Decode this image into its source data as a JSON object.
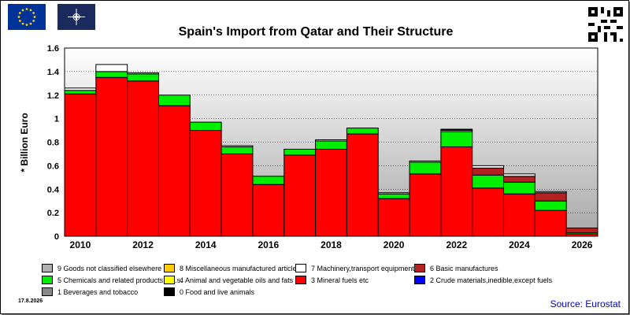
{
  "title": "Spain's Import from Qatar and Their Structure",
  "ylabel": "* Billion Euro",
  "date": "17.8.2026",
  "source": "Source: Eurostat",
  "colors": {
    "grid": "#000000",
    "plot_top": "#ffffff",
    "plot_bottom": "#a8a8a8"
  },
  "chart_data": {
    "type": "bar",
    "stacked": true,
    "x": [
      2010,
      2011,
      2012,
      2013,
      2014,
      2015,
      2016,
      2017,
      2018,
      2019,
      2020,
      2021,
      2022,
      2023,
      2024,
      2025,
      2026
    ],
    "x_tick_labels": [
      "2010",
      "2012",
      "2014",
      "2016",
      "2018",
      "2020",
      "2022",
      "2024",
      "2026"
    ],
    "ylim": [
      0,
      1.6
    ],
    "y_ticks": [
      "0",
      "0.2",
      "0.4",
      "0.6",
      "0.8",
      "1",
      "1.2",
      "1.4",
      "1.6"
    ],
    "grid": true,
    "series": [
      {
        "name": "3 Mineral fuels etc",
        "color": "#ff0000",
        "values": [
          1.21,
          1.35,
          1.32,
          1.11,
          0.9,
          0.7,
          0.44,
          0.69,
          0.74,
          0.87,
          0.32,
          0.53,
          0.76,
          0.41,
          0.36,
          0.22,
          0.02
        ]
      },
      {
        "name": "5 Chemicals and related products,n.e.s.",
        "color": "#00ee00",
        "values": [
          0.03,
          0.05,
          0.06,
          0.09,
          0.07,
          0.06,
          0.07,
          0.05,
          0.07,
          0.05,
          0.04,
          0.1,
          0.13,
          0.11,
          0.1,
          0.08,
          0.01
        ]
      },
      {
        "name": "6 Basic manufactures",
        "color": "#b22222",
        "values": [
          0.0,
          0.0,
          0.0,
          0.0,
          0.0,
          0.0,
          0.0,
          0.0,
          0.0,
          0.0,
          0.0,
          0.0,
          0.0,
          0.06,
          0.05,
          0.07,
          0.04
        ]
      },
      {
        "name": "7 Machinery,transport equipment",
        "color": "#ffffff",
        "values": [
          0.02,
          0.06,
          0.01,
          0.0,
          0.0,
          0.01,
          0.0,
          0.0,
          0.01,
          0.0,
          0.01,
          0.01,
          0.01,
          0.02,
          0.02,
          0.01,
          0.0
        ]
      },
      {
        "name": "8 Miscellaneous manufactured articles",
        "color": "#ffcc00",
        "values": [
          0.0,
          0.0,
          0.0,
          0.0,
          0.0,
          0.0,
          0.0,
          0.0,
          0.0,
          0.0,
          0.0,
          0.0,
          0.0,
          0.0,
          0.0,
          0.0,
          0.0
        ]
      },
      {
        "name": "9 Goods not classified elsewhere",
        "color": "#b0b0b0",
        "values": [
          0.0,
          0.0,
          0.0,
          0.0,
          0.0,
          0.0,
          0.0,
          0.0,
          0.0,
          0.0,
          0.0,
          0.0,
          0.0,
          0.0,
          0.0,
          0.0,
          0.0
        ]
      },
      {
        "name": "4 Animal and vegetable oils and fats",
        "color": "#ffff00",
        "values": [
          0.0,
          0.0,
          0.0,
          0.0,
          0.0,
          0.0,
          0.0,
          0.0,
          0.0,
          0.0,
          0.0,
          0.0,
          0.0,
          0.0,
          0.0,
          0.0,
          0.0
        ]
      },
      {
        "name": "2 Crude materials,inedible,except fuels",
        "color": "#0000ff",
        "values": [
          0.0,
          0.0,
          0.0,
          0.0,
          0.0,
          0.0,
          0.0,
          0.0,
          0.0,
          0.0,
          0.0,
          0.0,
          0.0,
          0.0,
          0.0,
          0.0,
          0.0
        ]
      },
      {
        "name": "1 Beverages and tobacco",
        "color": "#888888",
        "values": [
          0.0,
          0.0,
          0.0,
          0.0,
          0.0,
          0.0,
          0.0,
          0.0,
          0.0,
          0.0,
          0.0,
          0.0,
          0.0,
          0.0,
          0.0,
          0.0,
          0.0
        ]
      },
      {
        "name": "0 Food and live animals",
        "color": "#000000",
        "values": [
          0.0,
          0.0,
          0.0,
          0.0,
          0.0,
          0.0,
          0.0,
          0.0,
          0.0,
          0.0,
          0.0,
          0.0,
          0.01,
          0.0,
          0.0,
          0.0,
          0.0
        ]
      }
    ],
    "legend": [
      {
        "label": "9 Goods not classified elsewhere",
        "color": "#b0b0b0"
      },
      {
        "label": "8 Miscellaneous manufactured articles",
        "color": "#ffcc00"
      },
      {
        "label": "7 Machinery,transport equipment",
        "color": "#ffffff"
      },
      {
        "label": "6 Basic manufactures",
        "color": "#b22222"
      },
      {
        "label": "5 Chemicals and related products,n.e.s.",
        "color": "#00ee00"
      },
      {
        "label": "4 Animal and vegetable oils and fats",
        "color": "#ffff00"
      },
      {
        "label": "3 Mineral fuels etc",
        "color": "#ff0000"
      },
      {
        "label": "2 Crude materials,inedible,except fuels",
        "color": "#0000ff"
      },
      {
        "label": "1 Beverages and tobacco",
        "color": "#888888"
      },
      {
        "label": "0 Food and live animals",
        "color": "#000000"
      }
    ]
  }
}
